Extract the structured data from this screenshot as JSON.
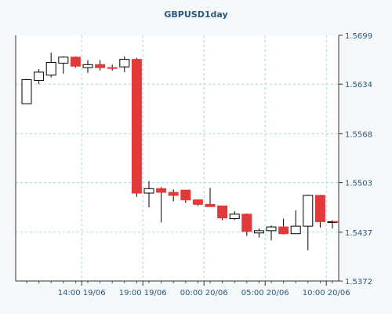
{
  "chart_data": {
    "type": "candlestick",
    "title": "GBPUSD1day",
    "xlabel": "",
    "ylabel": "",
    "ylim": [
      1.5372,
      1.5699
    ],
    "y_ticks": [
      "1.5699",
      "1.5634",
      "1.5568",
      "1.5503",
      "1.5437",
      "1.5372"
    ],
    "y_tick_values": [
      1.5699,
      1.5634,
      1.5568,
      1.5503,
      1.5437,
      1.5372
    ],
    "x_ticks": [
      "14:00 19/06",
      "19:00 19/06",
      "00:00 20/06",
      "05:00 20/06",
      "10:00 20/06"
    ],
    "x_tick_positions": [
      4.5,
      9.5,
      14.5,
      19.5,
      24.5
    ],
    "grid": true,
    "up_color": "#ffffff",
    "down_color": "#e03a3a",
    "candles": [
      {
        "open": 1.5608,
        "high": 1.5641,
        "low": 1.5608,
        "close": 1.564
      },
      {
        "open": 1.5639,
        "high": 1.5654,
        "low": 1.5634,
        "close": 1.565
      },
      {
        "open": 1.5646,
        "high": 1.5676,
        "low": 1.5643,
        "close": 1.5663
      },
      {
        "open": 1.5662,
        "high": 1.5671,
        "low": 1.5648,
        "close": 1.567
      },
      {
        "open": 1.567,
        "high": 1.5671,
        "low": 1.5656,
        "close": 1.5658
      },
      {
        "open": 1.5656,
        "high": 1.5666,
        "low": 1.5649,
        "close": 1.566
      },
      {
        "open": 1.566,
        "high": 1.5666,
        "low": 1.5652,
        "close": 1.5656
      },
      {
        "open": 1.5656,
        "high": 1.566,
        "low": 1.5652,
        "close": 1.5655
      },
      {
        "open": 1.5657,
        "high": 1.5671,
        "low": 1.565,
        "close": 1.5667
      },
      {
        "open": 1.5667,
        "high": 1.5669,
        "low": 1.5484,
        "close": 1.5489
      },
      {
        "open": 1.5489,
        "high": 1.5505,
        "low": 1.547,
        "close": 1.5495
      },
      {
        "open": 1.5495,
        "high": 1.5497,
        "low": 1.545,
        "close": 1.549
      },
      {
        "open": 1.549,
        "high": 1.5494,
        "low": 1.5478,
        "close": 1.5486
      },
      {
        "open": 1.5493,
        "high": 1.5493,
        "low": 1.5476,
        "close": 1.548
      },
      {
        "open": 1.548,
        "high": 1.548,
        "low": 1.5472,
        "close": 1.5474
      },
      {
        "open": 1.5474,
        "high": 1.5496,
        "low": 1.5471,
        "close": 1.5471
      },
      {
        "open": 1.5472,
        "high": 1.5472,
        "low": 1.5453,
        "close": 1.5456
      },
      {
        "open": 1.5455,
        "high": 1.5465,
        "low": 1.5453,
        "close": 1.5461
      },
      {
        "open": 1.5461,
        "high": 1.5462,
        "low": 1.5432,
        "close": 1.5438
      },
      {
        "open": 1.5436,
        "high": 1.5442,
        "low": 1.543,
        "close": 1.5439
      },
      {
        "open": 1.5439,
        "high": 1.5446,
        "low": 1.5426,
        "close": 1.5444
      },
      {
        "open": 1.5444,
        "high": 1.5455,
        "low": 1.5434,
        "close": 1.5435
      },
      {
        "open": 1.5435,
        "high": 1.5466,
        "low": 1.5435,
        "close": 1.5445
      },
      {
        "open": 1.5445,
        "high": 1.5487,
        "low": 1.5413,
        "close": 1.5486
      },
      {
        "open": 1.5486,
        "high": 1.5487,
        "low": 1.5443,
        "close": 1.5451
      },
      {
        "open": 1.5451,
        "high": 1.5453,
        "low": 1.5442,
        "close": 1.5451
      }
    ]
  }
}
